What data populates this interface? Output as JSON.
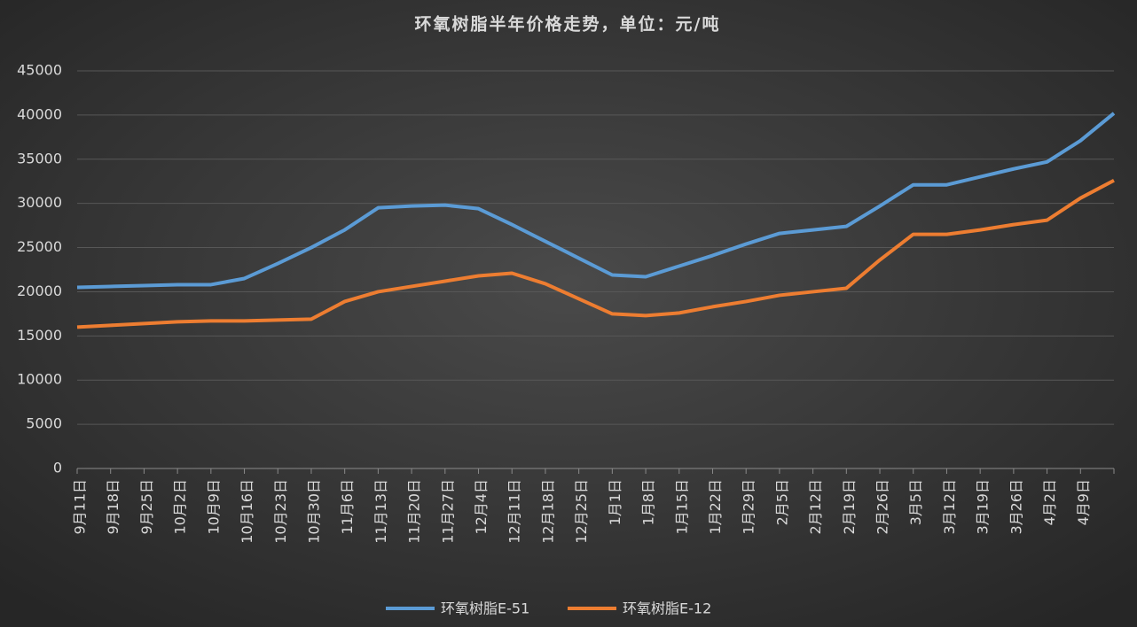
{
  "chart_data": {
    "type": "line",
    "title": "环氧树脂半年价格走势，单位：元/吨",
    "categories": [
      "9月11日",
      "9月18日",
      "9月25日",
      "10月2日",
      "10月9日",
      "10月16日",
      "10月23日",
      "10月30日",
      "11月6日",
      "11月13日",
      "11月20日",
      "11月27日",
      "12月4日",
      "12月11日",
      "12月18日",
      "12月25日",
      "1月1日",
      "1月8日",
      "1月15日",
      "1月22日",
      "1月29日",
      "2月5日",
      "2月12日",
      "2月19日",
      "2月26日",
      "3月5日",
      "3月12日",
      "3月19日",
      "3月26日",
      "4月2日",
      "4月9日",
      null
    ],
    "series": [
      {
        "name": "环氧树脂E-51",
        "color": "#5b9bd5",
        "values": [
          20500,
          20600,
          20700,
          20800,
          20800,
          21500,
          23200,
          25000,
          27000,
          29500,
          29700,
          29800,
          29400,
          27600,
          25700,
          23800,
          21900,
          21700,
          22900,
          24100,
          25400,
          26600,
          27000,
          27400,
          29700,
          32100,
          32100,
          33000,
          33900,
          34700,
          37100,
          40200
        ]
      },
      {
        "name": "环氧树脂E-12",
        "color": "#ed7d31",
        "values": [
          16000,
          16200,
          16400,
          16600,
          16700,
          16700,
          16800,
          16900,
          18900,
          20000,
          20600,
          21200,
          21800,
          22100,
          20900,
          19200,
          17500,
          17300,
          17600,
          18300,
          18900,
          19600,
          20000,
          20400,
          23600,
          26500,
          26500,
          27000,
          27600,
          28100,
          30600,
          32600
        ]
      }
    ],
    "ylim": [
      0,
      45000
    ],
    "yticks": [
      0,
      5000,
      10000,
      15000,
      20000,
      25000,
      30000,
      35000,
      40000,
      45000
    ],
    "grid": true,
    "legend": "bottom"
  }
}
